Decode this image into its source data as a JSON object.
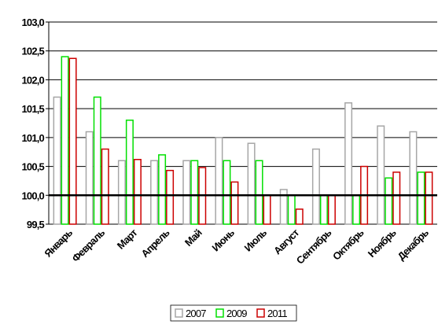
{
  "chart_data": {
    "type": "bar",
    "categories": [
      "Январь",
      "Февраль",
      "Март",
      "Апрель",
      "Май",
      "Июнь",
      "Июль",
      "Август",
      "Сентябрь",
      "Октябрь",
      "Ноябрь",
      "Декабрь"
    ],
    "series": [
      {
        "name": "2007",
        "color": "#a6a6a6",
        "values": [
          101.7,
          101.1,
          100.6,
          100.6,
          100.6,
          101.0,
          100.9,
          100.1,
          100.8,
          101.6,
          101.2,
          101.1
        ]
      },
      {
        "name": "2009",
        "color": "#00e000",
        "values": [
          102.4,
          101.7,
          101.3,
          100.7,
          100.6,
          100.6,
          100.6,
          100.0,
          100.0,
          100.0,
          100.3,
          100.4
        ]
      },
      {
        "name": "2011",
        "color": "#cc0000",
        "values": [
          102.37,
          100.8,
          100.62,
          100.43,
          100.48,
          100.23,
          100.0,
          99.76,
          100.0,
          100.5,
          100.4,
          100.4
        ]
      }
    ],
    "ylim": [
      99.5,
      103.0
    ],
    "yticks": [
      {
        "value": 99.5,
        "label": "99,5"
      },
      {
        "value": 100.0,
        "label": "100,0"
      },
      {
        "value": 100.5,
        "label": "100,5"
      },
      {
        "value": 101.0,
        "label": "101,0"
      },
      {
        "value": 101.5,
        "label": "101,5"
      },
      {
        "value": 102.0,
        "label": "102,0"
      },
      {
        "value": 102.5,
        "label": "102,5"
      },
      {
        "value": 103.0,
        "label": "103,0"
      }
    ],
    "reference_line": 100.0,
    "grid": true,
    "legend": "bottom"
  }
}
